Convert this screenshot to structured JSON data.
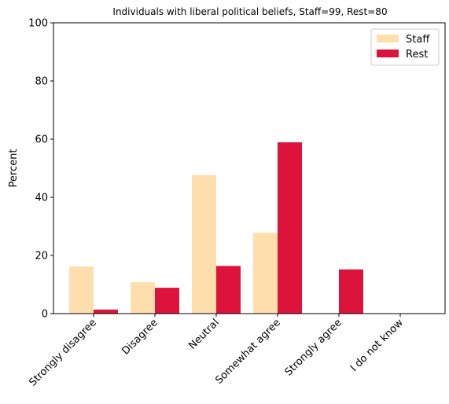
{
  "chart_data": {
    "type": "bar",
    "title": "Individuals with liberal political beliefs, Staff=99, Rest=80",
    "xlabel": "",
    "ylabel": "Percent",
    "ylim": [
      0,
      100
    ],
    "yticks": [
      0,
      20,
      40,
      60,
      80,
      100
    ],
    "categories": [
      "Strongly disagree",
      "Disagree",
      "Neutral",
      "Somewhat agree",
      "Strongly agree",
      "I do not know"
    ],
    "series": [
      {
        "name": "Staff",
        "color": "#FFDEAD",
        "values": [
          16.2,
          10.8,
          47.6,
          27.8,
          0,
          0
        ]
      },
      {
        "name": "Rest",
        "color": "#DC143C",
        "values": [
          1.4,
          8.9,
          16.4,
          58.9,
          15.2,
          0
        ]
      }
    ],
    "legend": "top-right",
    "grid": false
  }
}
